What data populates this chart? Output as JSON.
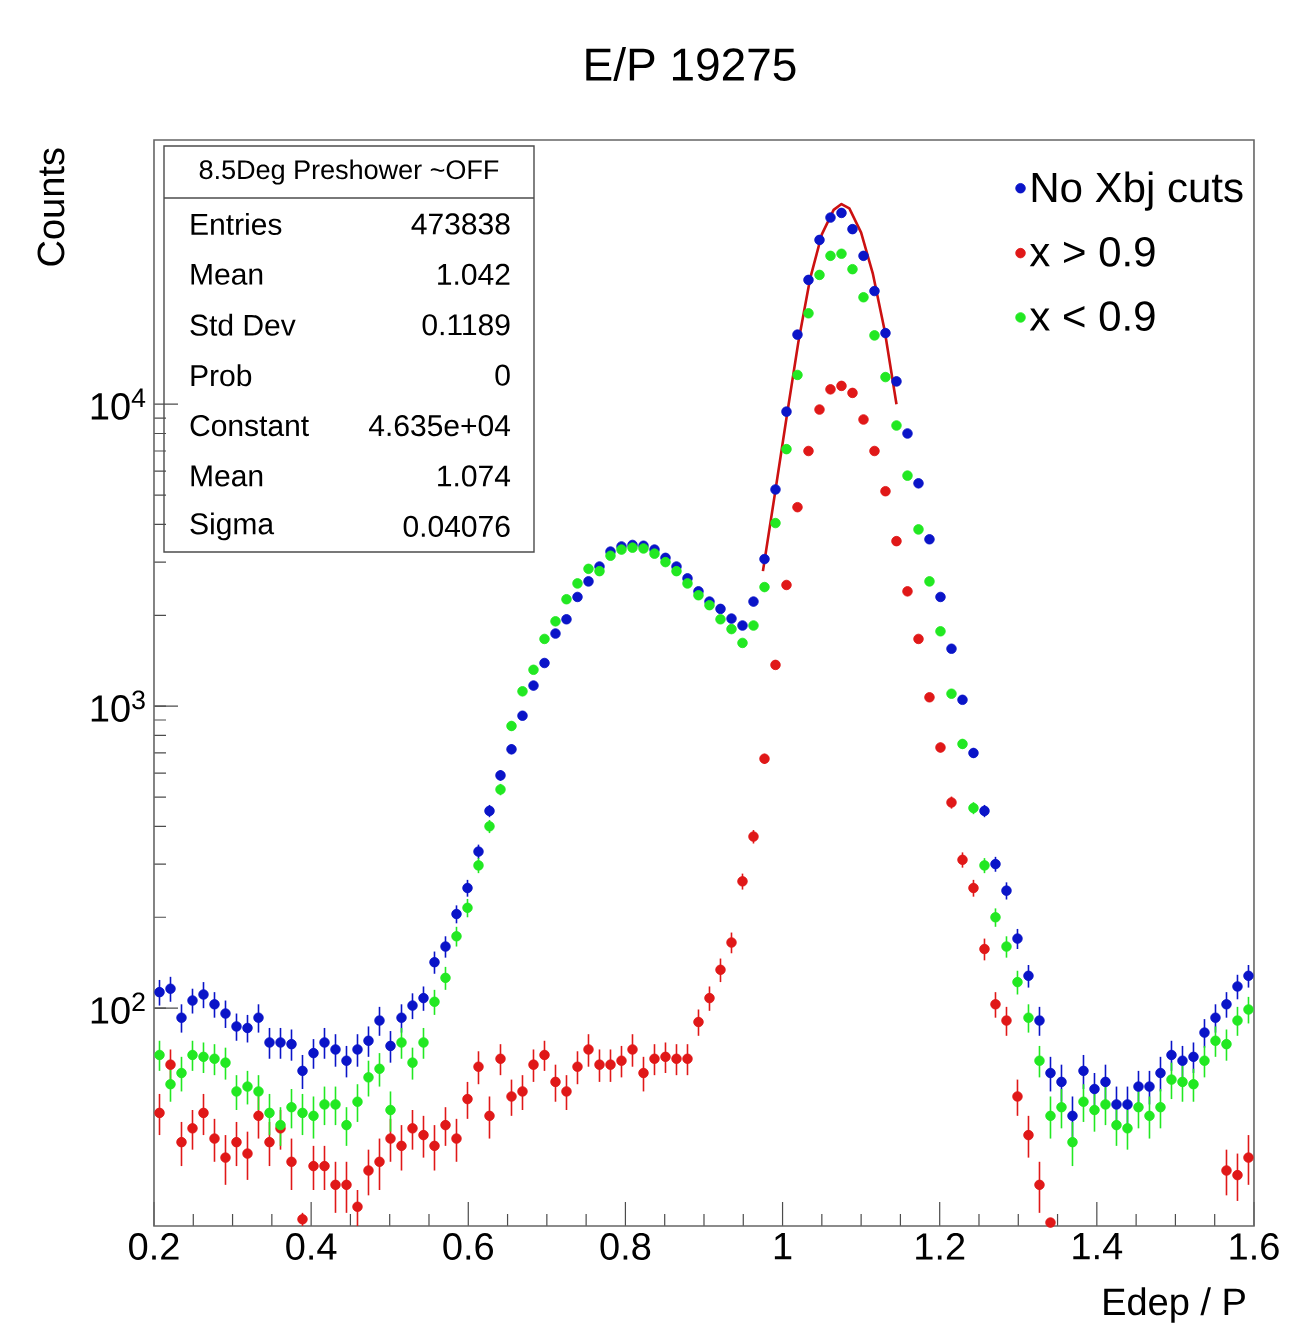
{
  "chart_data": {
    "type": "scatter",
    "title": "E/P 19275",
    "xlabel": "Edep / P",
    "ylabel": "Counts",
    "annotations": [
      "8.5Deg Preshower ~OFF",
      "Entries",
      "473838",
      "Mean",
      "1.042",
      "Std Dev",
      "0.1189",
      "Prob",
      "0",
      "Constant",
      "4.635e+04",
      "Mean",
      "1.074",
      "Sigma",
      "0.04076"
    ],
    "x": [
      0.207,
      0.221,
      0.235,
      0.249,
      0.263,
      0.277,
      0.291,
      0.305,
      0.319,
      0.333,
      0.347,
      0.361,
      0.375,
      0.389,
      0.403,
      0.417,
      0.431,
      0.445,
      0.459,
      0.473,
      0.487,
      0.501,
      0.515,
      0.529,
      0.543,
      0.557,
      0.571,
      0.585,
      0.599,
      0.613,
      0.627,
      0.641,
      0.655,
      0.669,
      0.683,
      0.697,
      0.711,
      0.725,
      0.739,
      0.753,
      0.767,
      0.781,
      0.795,
      0.809,
      0.823,
      0.837,
      0.851,
      0.865,
      0.879,
      0.893,
      0.907,
      0.921,
      0.935,
      0.949,
      0.963,
      0.977,
      0.991,
      1.005,
      1.019,
      1.033,
      1.047,
      1.061,
      1.075,
      1.089,
      1.103,
      1.117,
      1.131,
      1.145,
      1.159,
      1.173,
      1.187,
      1.201,
      1.215,
      1.229,
      1.243,
      1.257,
      1.271,
      1.285,
      1.299,
      1.313,
      1.327,
      1.341,
      1.355,
      1.369,
      1.383,
      1.397,
      1.411,
      1.425,
      1.439,
      1.453,
      1.467,
      1.481,
      1.495,
      1.509,
      1.523,
      1.537,
      1.551,
      1.565,
      1.579,
      1.593
    ],
    "series": [
      {
        "name": "No Xbj cuts",
        "color": "#0a14c8",
        "values": [
          113,
          116,
          93,
          106,
          111,
          103,
          96,
          87,
          86,
          93,
          77,
          77,
          76,
          62,
          71,
          77,
          73,
          67,
          73,
          78,
          91,
          75,
          93,
          102,
          108,
          142,
          160,
          205,
          250,
          330,
          450,
          590,
          720,
          930,
          1170,
          1390,
          1740,
          1940,
          2300,
          2590,
          2900,
          3250,
          3380,
          3420,
          3400,
          3300,
          3100,
          2900,
          2650,
          2400,
          2220,
          2100,
          1950,
          1850,
          2220,
          3070,
          5220,
          9450,
          17000,
          25800,
          35000,
          41500,
          43000,
          38000,
          31000,
          23700,
          17200,
          11900,
          8000,
          5470,
          3570,
          2300,
          1550,
          1050,
          700,
          450,
          300,
          245,
          170,
          128,
          91,
          61,
          57,
          44,
          62,
          54,
          57,
          48,
          48,
          55,
          55,
          61,
          70,
          67,
          69,
          83,
          93,
          103,
          118,
          128
        ],
        "errors": [
          11,
          11,
          10,
          10,
          11,
          10,
          10,
          9,
          9,
          10,
          9,
          9,
          9,
          8,
          8,
          9,
          9,
          8,
          9,
          9,
          10,
          9,
          10,
          10,
          10,
          12,
          13,
          14,
          16,
          18,
          21,
          24,
          27,
          30,
          null,
          null,
          null,
          null,
          null,
          null,
          null,
          null,
          null,
          null,
          null,
          null,
          null,
          null,
          null,
          null,
          null,
          null,
          null,
          null,
          null,
          null,
          null,
          null,
          null,
          null,
          null,
          null,
          null,
          null,
          null,
          null,
          null,
          null,
          null,
          null,
          null,
          null,
          null,
          null,
          26,
          21,
          17,
          16,
          13,
          11,
          10,
          8,
          8,
          7,
          8,
          7,
          8,
          7,
          7,
          7,
          7,
          8,
          8,
          8,
          8,
          9,
          10,
          10,
          11,
          11
        ]
      },
      {
        "name": "x > 0.9",
        "color": "#e01818",
        "values": [
          45,
          65,
          36,
          40,
          45,
          37,
          32,
          36,
          33,
          44,
          36,
          40,
          31,
          20,
          30,
          30,
          26,
          26,
          22,
          29,
          31,
          37,
          35,
          40,
          38,
          35,
          41,
          37,
          50,
          64,
          44,
          68,
          51,
          53,
          65,
          70,
          57,
          53,
          64,
          73,
          65,
          65,
          67,
          73,
          61,
          68,
          69,
          68,
          68,
          90,
          108,
          134,
          165,
          263,
          370,
          670,
          1370,
          2520,
          4560,
          7000,
          9600,
          11200,
          11500,
          10900,
          8900,
          7000,
          5150,
          3520,
          2400,
          1670,
          1070,
          730,
          480,
          310,
          250,
          157,
          103,
          91,
          51,
          38,
          26,
          19.5,
          null,
          null,
          null,
          null,
          null,
          null,
          null,
          null,
          null,
          null,
          null,
          null,
          null,
          null,
          null,
          29,
          28,
          32
        ],
        "errors": [
          7,
          8,
          6,
          6,
          7,
          6,
          6,
          6,
          6,
          7,
          6,
          6,
          6,
          1,
          5,
          5,
          5,
          5,
          3,
          5,
          6,
          6,
          6,
          6,
          6,
          6,
          6,
          6,
          7,
          8,
          7,
          8,
          7,
          7,
          8,
          8,
          8,
          7,
          8,
          9,
          8,
          8,
          8,
          9,
          8,
          8,
          8,
          8,
          8,
          9,
          10,
          12,
          13,
          16,
          19,
          26,
          null,
          null,
          null,
          null,
          null,
          null,
          null,
          null,
          null,
          null,
          null,
          null,
          null,
          null,
          null,
          27,
          22,
          18,
          16,
          13,
          10,
          10,
          7,
          6,
          5,
          0.5,
          null,
          null,
          null,
          null,
          null,
          null,
          null,
          null,
          null,
          null,
          null,
          null,
          null,
          null,
          null,
          5,
          5,
          6
        ]
      },
      {
        "name": "x < 0.9",
        "color": "#22e822",
        "values": [
          70,
          56,
          61,
          70,
          69,
          68,
          66,
          53,
          55,
          53,
          45,
          41,
          47,
          45,
          44,
          48,
          48,
          41,
          49,
          59,
          63,
          46,
          77,
          66,
          77,
          105,
          126,
          173,
          215,
          297,
          400,
          530,
          860,
          1120,
          1320,
          1670,
          1910,
          2260,
          2550,
          2850,
          2800,
          3150,
          3300,
          3350,
          3330,
          3200,
          3000,
          2800,
          2550,
          2330,
          2160,
          1940,
          1800,
          1620,
          1850,
          2480,
          4040,
          7100,
          12500,
          20000,
          26800,
          31000,
          31500,
          28000,
          22600,
          16900,
          12300,
          8500,
          5800,
          3850,
          2590,
          1770,
          1100,
          750,
          460,
          297,
          200,
          160,
          122,
          93,
          67,
          44,
          47,
          36,
          49,
          46,
          48,
          41,
          40,
          47,
          44,
          47,
          58,
          57,
          56,
          67,
          78,
          76,
          91,
          99
        ],
        "errors": [
          8,
          7,
          8,
          8,
          8,
          8,
          8,
          7,
          7,
          7,
          7,
          6,
          7,
          7,
          7,
          7,
          7,
          6,
          7,
          8,
          8,
          7,
          9,
          8,
          9,
          10,
          11,
          13,
          15,
          17,
          20,
          23,
          29,
          null,
          null,
          null,
          null,
          null,
          null,
          null,
          null,
          null,
          null,
          null,
          null,
          null,
          null,
          null,
          null,
          null,
          null,
          null,
          null,
          null,
          null,
          null,
          null,
          null,
          null,
          null,
          null,
          null,
          null,
          null,
          null,
          null,
          null,
          null,
          null,
          null,
          null,
          null,
          null,
          27,
          21,
          17,
          14,
          13,
          11,
          10,
          8,
          7,
          7,
          6,
          7,
          7,
          7,
          6,
          6,
          7,
          7,
          7,
          8,
          8,
          7,
          8,
          9,
          9,
          10,
          10
        ]
      },
      {
        "type": "line",
        "color": "#cc1111",
        "marker": "none",
        "line_style": "solid",
        "x": [
          0.975,
          0.99,
          1.005,
          1.02,
          1.035,
          1.05,
          1.065,
          1.075,
          1.085,
          1.1,
          1.115,
          1.13,
          1.145
        ],
        "values": [
          2800,
          5000,
          9000,
          16000,
          26000,
          36500,
          44000,
          46000,
          44500,
          37000,
          27000,
          17500,
          10000
        ]
      }
    ],
    "xlim": [
      0.2,
      1.6
    ],
    "ylim": [
      19,
      75000
    ],
    "xticks": [
      0.2,
      0.4,
      0.6,
      0.8,
      1,
      1.2,
      1.4,
      1.6
    ],
    "yticks": [
      {
        "value": 100,
        "label": "10$^{2}$"
      },
      {
        "value": 1000,
        "label": "10$^{3}$"
      },
      {
        "value": 10000,
        "label": "10$^{4}$"
      }
    ],
    "log": "y",
    "marker": "circle",
    "legend": "top right"
  }
}
